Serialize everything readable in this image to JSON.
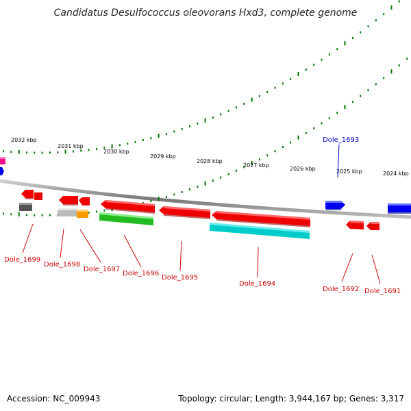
{
  "title": "Candidatus Desulfococcus oleovorans Hxd3, complete genome",
  "footer": {
    "accession": "Accession: NC_009943",
    "topology": "Topology: circular; Length: 3,944,167 bp; Genes: 3,317"
  },
  "colors": {
    "red": "#ee0000",
    "blue": "#0000ee",
    "green": "#22bb22",
    "cyan": "#00cccc",
    "gray": "#555555",
    "lightgray": "#bbbbbb",
    "orange": "#ff9900",
    "magenta": "#ee1188",
    "ticks": "#007700",
    "backbone": "#888888"
  },
  "scale_labels": [
    "2032 kbp",
    "2031 kbp",
    "2030 kbp",
    "2029 kbp",
    "2028 kbp",
    "2027 kbp",
    "2026 kbp",
    "2025 kbp",
    "2024 kbp"
  ],
  "gene_labels": [
    {
      "text": "Dole_1693",
      "color": "blue"
    },
    {
      "text": "Dole_1699",
      "color": "red"
    },
    {
      "text": "Dole_1698",
      "color": "red"
    },
    {
      "text": "Dole_1697",
      "color": "red"
    },
    {
      "text": "Dole_1696",
      "color": "red"
    },
    {
      "text": "Dole_1695",
      "color": "red"
    },
    {
      "text": "Dole_1694",
      "color": "red"
    },
    {
      "text": "Dole_1692",
      "color": "red"
    },
    {
      "text": "Dole_1691",
      "color": "red"
    }
  ]
}
